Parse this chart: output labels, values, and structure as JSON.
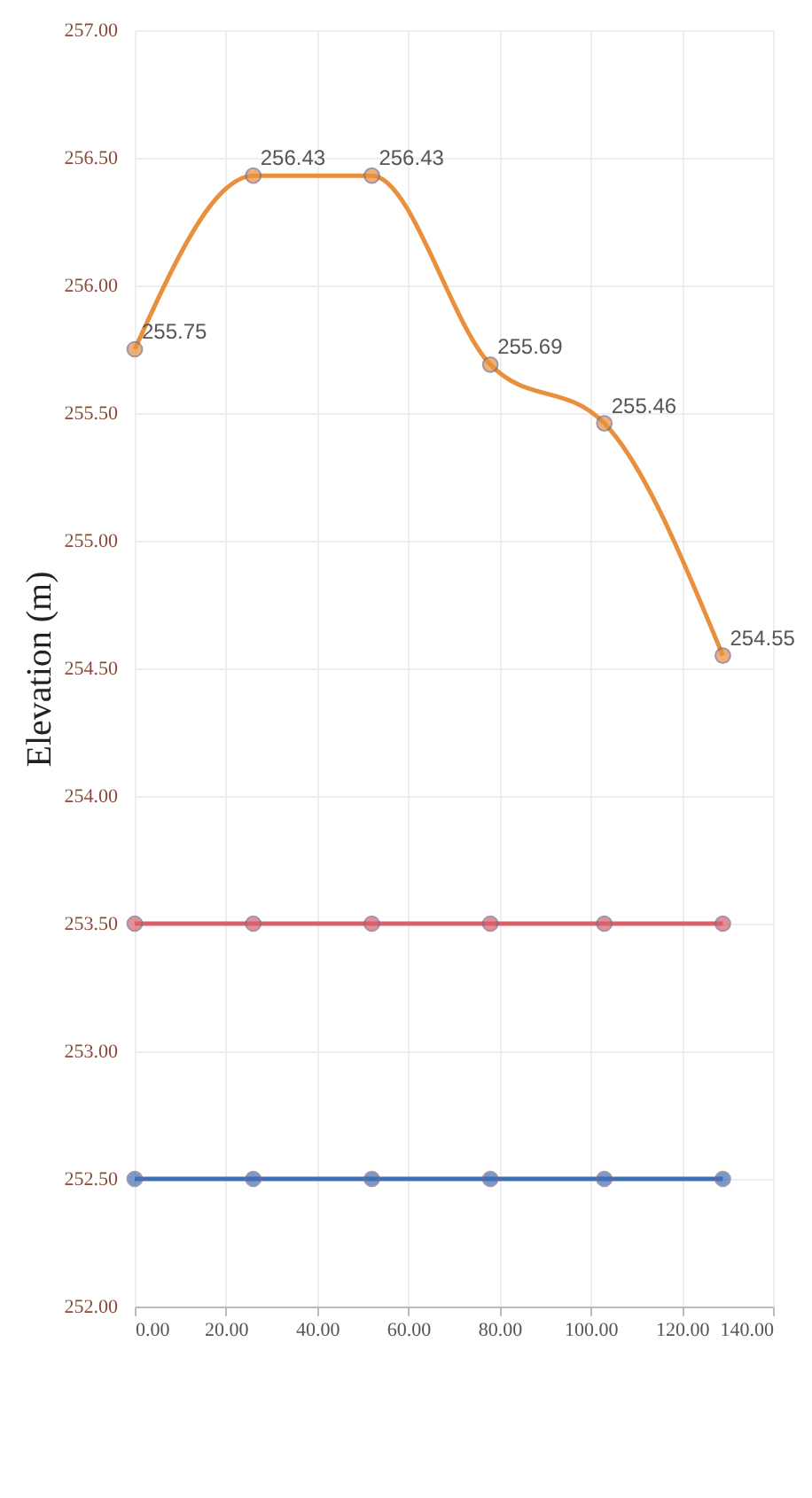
{
  "chart_data": {
    "type": "line",
    "ylabel": "Elevation (m)",
    "xlim": [
      0,
      140
    ],
    "xticks": [
      {
        "value": 0,
        "label": "0.00"
      },
      {
        "value": 20,
        "label": "20.00"
      },
      {
        "value": 40,
        "label": "40.00"
      },
      {
        "value": 60,
        "label": "60.00"
      },
      {
        "value": 80,
        "label": "80.00"
      },
      {
        "value": 100,
        "label": "100.00"
      },
      {
        "value": 120,
        "label": "120.00"
      },
      {
        "value": 140,
        "label": "140.00"
      }
    ],
    "ylim": [
      252,
      257
    ],
    "yticks": [
      {
        "value": 252,
        "label": "252.00"
      },
      {
        "value": 252.5,
        "label": "252.50"
      },
      {
        "value": 253,
        "label": "253.00"
      },
      {
        "value": 253.5,
        "label": "253.50"
      },
      {
        "value": 254,
        "label": "254.00"
      },
      {
        "value": 254.5,
        "label": "254.50"
      },
      {
        "value": 255,
        "label": "255.00"
      },
      {
        "value": 255.5,
        "label": "255.50"
      },
      {
        "value": 256,
        "label": "256.00"
      },
      {
        "value": 256.5,
        "label": "256.50"
      },
      {
        "value": 257,
        "label": "257.00"
      }
    ],
    "x": [
      0,
      26,
      52,
      78,
      103,
      129
    ],
    "series": [
      {
        "color": "#e8903c",
        "values": [
          255.75,
          256.43,
          256.43,
          255.69,
          255.46,
          254.55
        ],
        "value_labels": [
          "255.75",
          "256.43",
          "256.43",
          "255.69",
          "255.46",
          "254.55"
        ]
      },
      {
        "color": "#d9606a",
        "values": [
          253.5,
          253.5,
          253.5,
          253.5,
          253.5,
          253.5
        ]
      },
      {
        "color": "#3f6fb5",
        "values": [
          252.5,
          252.5,
          252.5,
          252.5,
          252.5,
          252.5
        ]
      }
    ],
    "grid": true,
    "marker": "circle",
    "line_style": "solid"
  }
}
